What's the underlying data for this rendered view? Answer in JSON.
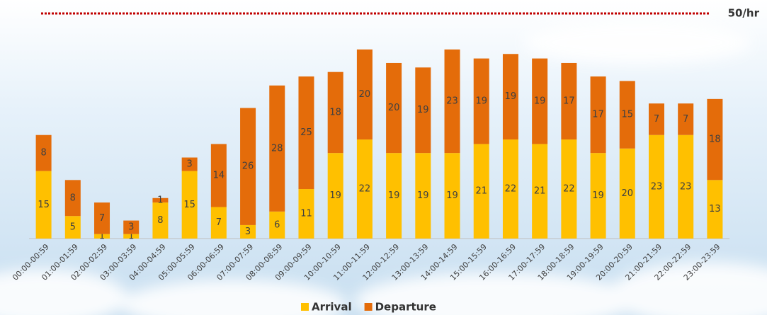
{
  "chart_data": {
    "type": "stacked_bar",
    "categories": [
      "00:00-00:59",
      "01:00-01:59",
      "02:00-02:59",
      "03:00-03:59",
      "04:00-04:59",
      "05:00-05:59",
      "06:00-06:59",
      "07:00-07:59",
      "08:00-08:59",
      "09:00-09:59",
      "10:00-10:59",
      "11:00-11:59",
      "12:00-12:59",
      "13:00-13:59",
      "14:00-14:59",
      "15:00-15:59",
      "16:00-16:59",
      "17:00-17:59",
      "18:00-18:59",
      "19:00-19:59",
      "20:00-20:59",
      "21:00-21:59",
      "22:00-22:59",
      "23:00-23:59"
    ],
    "series": [
      {
        "name": "Arrival",
        "color": "#ffc000",
        "values": [
          15,
          5,
          1,
          1,
          8,
          15,
          7,
          3,
          6,
          11,
          19,
          22,
          19,
          19,
          19,
          21,
          22,
          21,
          22,
          19,
          20,
          23,
          23,
          13
        ]
      },
      {
        "name": "Departure",
        "color": "#e46c0a",
        "values": [
          8,
          8,
          7,
          3,
          1,
          3,
          14,
          26,
          28,
          25,
          18,
          20,
          20,
          19,
          23,
          19,
          19,
          19,
          17,
          17,
          15,
          7,
          7,
          18
        ]
      }
    ],
    "ylim": [
      0,
      50
    ],
    "reference_line": {
      "value": 50,
      "label": "50/hr",
      "color": "#c00000"
    },
    "legend": "bottom"
  }
}
